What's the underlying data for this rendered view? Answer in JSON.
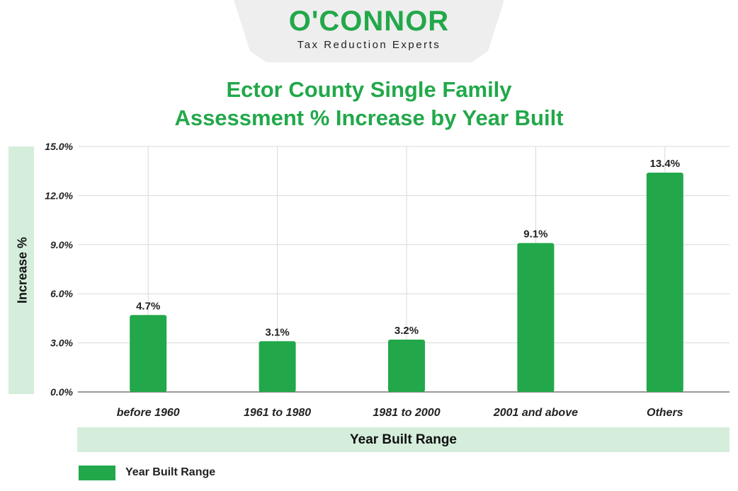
{
  "brand": {
    "name": "O'CONNOR",
    "tagline": "Tax Reduction Experts"
  },
  "colors": {
    "accent": "#22a84a",
    "band": "#d5eedb",
    "grid": "#d9d9d9"
  },
  "chart_data": {
    "type": "bar",
    "title_line1": "Ector County Single Family",
    "title_line2": "Assessment % Increase by Year Built",
    "xlabel": "Year Built Range",
    "ylabel": "Increase %",
    "categories": [
      "before 1960",
      "1961 to 1980",
      "1981 to 2000",
      "2001 and above",
      "Others"
    ],
    "series": [
      {
        "name": "Year Built Range",
        "values": [
          4.7,
          3.1,
          3.2,
          9.1,
          13.4
        ],
        "labels": [
          "4.7%",
          "3.1%",
          "3.2%",
          "9.1%",
          "13.4%"
        ],
        "color": "#22a84a"
      }
    ],
    "ylim": [
      0,
      15
    ],
    "yticks": [
      0,
      3,
      6,
      9,
      12,
      15
    ],
    "ytick_labels": [
      "0.0%",
      "3.0%",
      "6.0%",
      "9.0%",
      "12.0%",
      "15.0%"
    ],
    "grid": true,
    "legend": "bottom-left"
  }
}
